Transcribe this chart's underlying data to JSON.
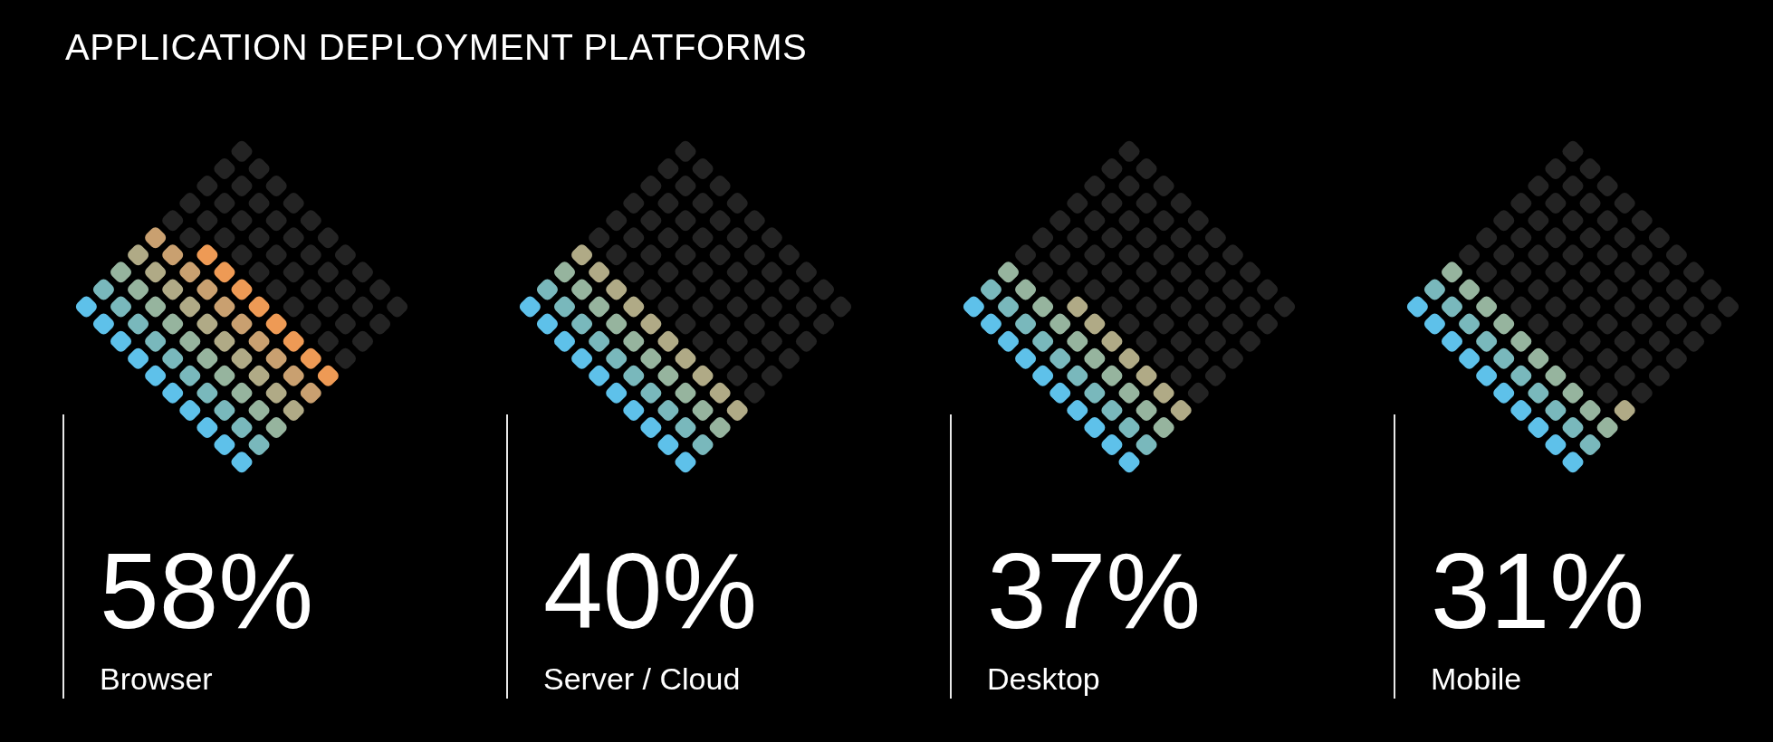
{
  "chart_data": {
    "type": "other",
    "title": "APPLICATION DEPLOYMENT PLATFORMS",
    "categories": [
      "Browser",
      "Server / Cloud",
      "Desktop",
      "Mobile"
    ],
    "values": [
      58,
      40,
      37,
      31
    ],
    "value_labels": [
      "58%",
      "40%",
      "37%",
      "31%"
    ]
  }
}
